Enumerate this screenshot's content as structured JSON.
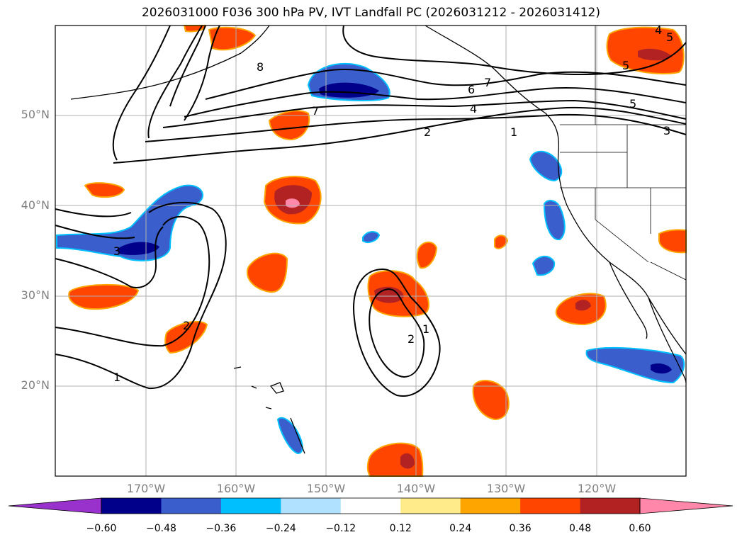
{
  "title": "2026031000 F036 300 hPa PV, IVT Landfall PC (2026031212 - 2026031412)",
  "latitude_labels": [
    "50°N",
    "40°N",
    "30°N",
    "20°N"
  ],
  "longitude_labels": [
    "170°W",
    "160°W",
    "150°W",
    "140°W",
    "130°W",
    "120°W"
  ],
  "contour_labels": [
    "8",
    "7",
    "6",
    "7",
    "4",
    "2",
    "1",
    "5",
    "5",
    "4",
    "5",
    "3",
    "3",
    "2",
    "1",
    "1",
    "2"
  ],
  "colorbar": {
    "tick_labels": [
      "−0.60",
      "−0.48",
      "−0.36",
      "−0.24",
      "−0.12",
      "0.12",
      "0.24",
      "0.36",
      "0.48",
      "0.60"
    ],
    "colors": [
      "#9932cc",
      "#00008b",
      "#3a5fcd",
      "#00bfff",
      "#b0e2ff",
      "#ffffff",
      "#ffeb8a",
      "#ffa500",
      "#ff4500",
      "#b22222",
      "#ff88aa"
    ]
  },
  "colors": {
    "neg_dark": "#00008b",
    "neg_mid": "#3a5fcd",
    "neg_light": "#00bfff",
    "pos_light": "#ffa500",
    "pos_mid": "#ff4500",
    "pos_dark": "#b22222",
    "pos_max": "#ff88aa",
    "grid": "#b0b0b0"
  }
}
